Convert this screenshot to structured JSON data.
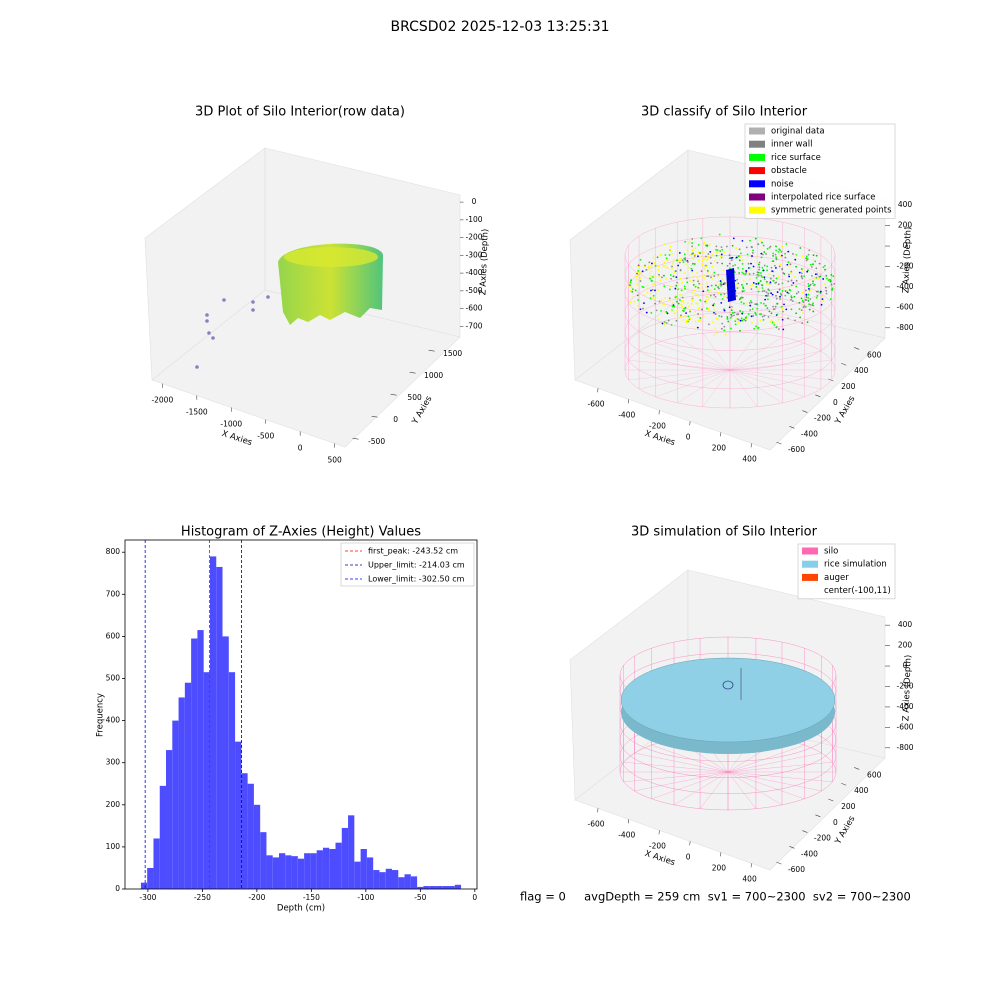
{
  "title": "BRCSD02 2025-12-03 13:25:31",
  "chart_data": [
    {
      "type": "scatter3d",
      "title": "3D Plot of Silo Interior(row data)",
      "xlabel": "X Axies",
      "ylabel": "Y Axies",
      "zlabel": "Z Axies (Depth)",
      "xlim": [
        -2150,
        650
      ],
      "xticks": [
        -2000,
        -1500,
        -1000,
        -500,
        0,
        500
      ],
      "ylim": [
        -700,
        1800
      ],
      "yticks": [
        -500,
        0,
        500,
        1000,
        1500
      ],
      "zlim": [
        -760,
        40
      ],
      "zticks": [
        0,
        -100,
        -200,
        -300,
        -400,
        -500,
        -600,
        -700
      ]
    },
    {
      "type": "scatter3d",
      "title": "3D classify of Silo Interior",
      "xlabel": "X Axies",
      "ylabel": "Y Axies",
      "zlabel": "Z Axies (Depth)",
      "xlim": [
        -750,
        520
      ],
      "xticks": [
        -600,
        -400,
        -200,
        0,
        200,
        400
      ],
      "ylim": [
        -700,
        720
      ],
      "yticks": [
        -600,
        -400,
        -200,
        0,
        200,
        400,
        600
      ],
      "zlim": [
        -900,
        480
      ],
      "zticks": [
        400,
        200,
        0,
        -200,
        -400,
        -600,
        -800
      ],
      "legend": [
        {
          "name": "original data",
          "color": "#b0b0b0"
        },
        {
          "name": "inner wall",
          "color": "#808080"
        },
        {
          "name": "rice surface",
          "color": "#00ff00"
        },
        {
          "name": "obstacle",
          "color": "#ff0000"
        },
        {
          "name": "noise",
          "color": "#0000ff"
        },
        {
          "name": "interpolated rice surface",
          "color": "#800080"
        },
        {
          "name": "symmetric generated points",
          "color": "#ffff00"
        }
      ]
    },
    {
      "type": "histogram",
      "title": "Histogram of Z-Axies (Height) Values",
      "xlabel": "Depth (cm)",
      "ylabel": "Frequency",
      "color": "#4d4dff",
      "bins": [
        -306.4,
        -300.64,
        -294.88,
        -289.12,
        -283.36,
        -277.6,
        -271.84,
        -266.08,
        -260.32,
        -254.56,
        -248.8,
        -243.04,
        -237.28,
        -231.52,
        -225.76,
        -220,
        -214.24,
        -208.48,
        -202.72,
        -196.96,
        -191.2,
        -185.44,
        -179.68,
        -173.92,
        -168.16,
        -162.4,
        -156.64,
        -150.88,
        -145.12,
        -139.36,
        -133.6,
        -127.84,
        -122.08,
        -116.32,
        -110.56,
        -104.8,
        -99.04,
        -93.28,
        -87.52,
        -81.76,
        -76,
        -70.24,
        -64.48,
        -58.72,
        -52.96,
        -47.2,
        -41.44,
        -35.68,
        -29.92,
        -24.16,
        -18.4,
        -12.64
      ],
      "values": [
        15,
        50,
        120,
        245,
        330,
        400,
        455,
        490,
        595,
        615,
        515,
        790,
        765,
        600,
        515,
        350,
        275,
        250,
        200,
        135,
        80,
        75,
        85,
        80,
        78,
        72,
        85,
        85,
        92,
        98,
        95,
        110,
        145,
        175,
        65,
        95,
        75,
        45,
        40,
        48,
        45,
        28,
        35,
        30,
        5,
        7,
        7,
        7,
        7,
        7,
        10
      ],
      "xlim": [
        -321,
        2
      ],
      "xticks": [
        -300,
        -250,
        -200,
        -150,
        -100,
        -50,
        0
      ],
      "ylim": [
        0,
        829
      ],
      "yticks": [
        0,
        100,
        200,
        300,
        400,
        500,
        600,
        700,
        800
      ],
      "reference_lines": [
        {
          "value": -243.52,
          "label": "first_peak: -243.52 cm",
          "color": "#ff0000"
        },
        {
          "value": -214.03,
          "label": "Upper_limit: -214.03 cm",
          "color": "#00008b"
        },
        {
          "value": -302.5,
          "label": "Lower_limit: -302.50 cm",
          "color": "#0000ff"
        }
      ]
    },
    {
      "type": "surface3d",
      "title": "3D simulation of Silo Interior",
      "xlabel": "X Axies",
      "ylabel": "Y Axies",
      "zlabel": "Z Axies (Depth)",
      "xlim": [
        -750,
        520
      ],
      "xticks": [
        -600,
        -400,
        -200,
        0,
        200,
        400
      ],
      "ylim": [
        -700,
        720
      ],
      "yticks": [
        -600,
        -400,
        -200,
        0,
        200,
        400,
        600
      ],
      "zlim": [
        -900,
        480
      ],
      "zticks": [
        400,
        200,
        0,
        -200,
        -400,
        -600,
        -800
      ],
      "legend": [
        {
          "name": "silo",
          "color": "#ff69b4"
        },
        {
          "name": "rice simulation",
          "color": "#87ceeb"
        },
        {
          "name": "auger",
          "color": "#ff4500"
        },
        {
          "name": "center(-100,11)",
          "color": "#ffffff"
        }
      ]
    }
  ],
  "status": "flag = 0     avgDepth = 259 cm  sv1 = 700~2300  sv2 = 700~2300"
}
